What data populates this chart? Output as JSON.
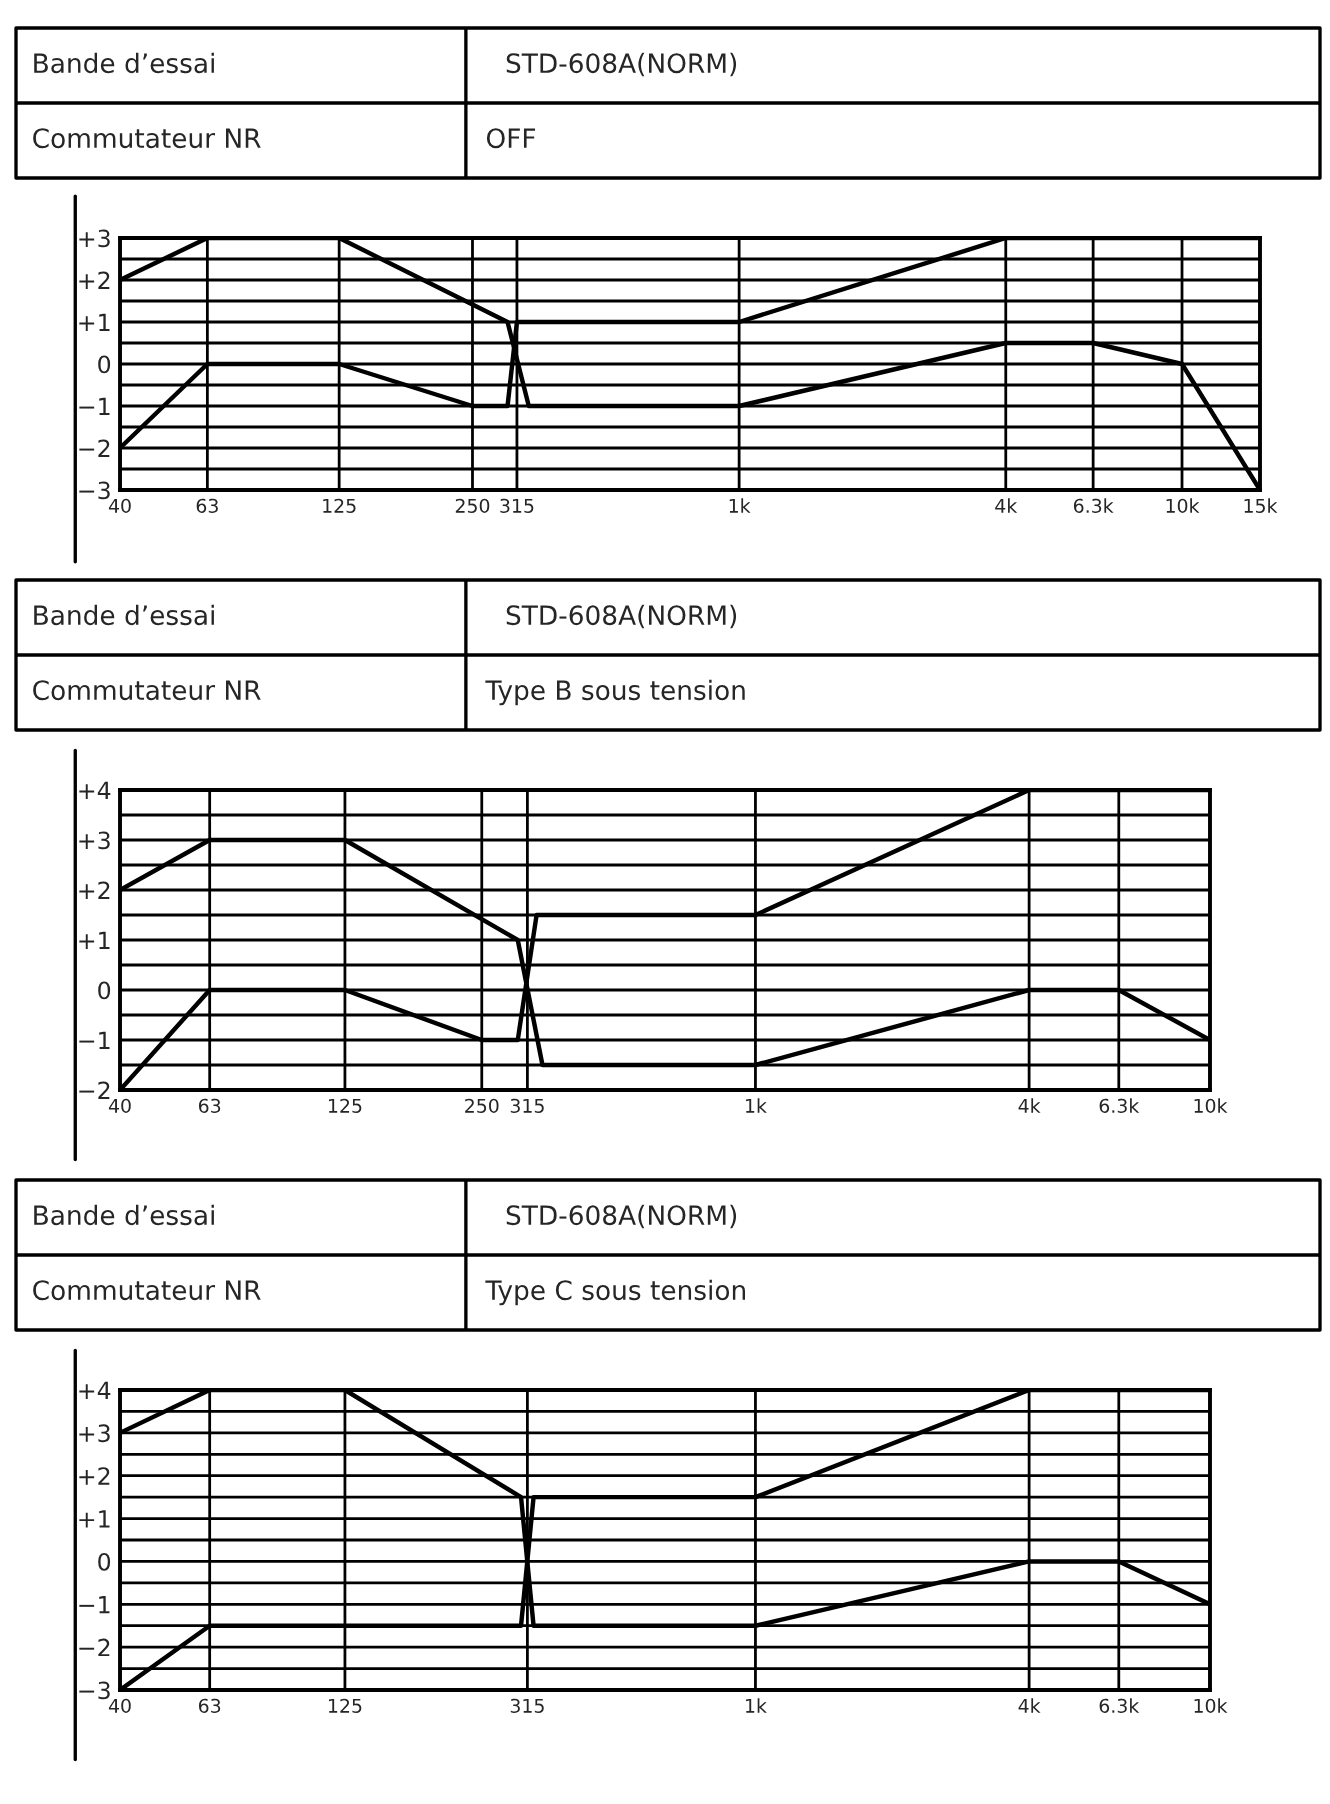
{
  "chart_data": [
    {
      "type": "line",
      "annotations": [
        "Bande d’essai",
        "STD-608A(NORM)",
        "Commutateur NR",
        "OFF"
      ],
      "log": "x",
      "grid": true,
      "marker": "none",
      "line_style": "solid",
      "xlim": [
        40,
        15000
      ],
      "xticks": [
        40,
        63,
        125,
        250,
        315,
        {
          "value": 1000,
          "label": "1k"
        },
        {
          "value": 4000,
          "label": "4k"
        },
        {
          "value": 6300,
          "label": "6.3k"
        },
        {
          "value": 10000,
          "label": "10k"
        },
        {
          "value": 15000,
          "label": "15k"
        }
      ],
      "ylim": [
        -3,
        3
      ],
      "yticks": [
        {
          "value": -3,
          "label": "−3"
        },
        {
          "value": -2.5,
          "label": null
        },
        {
          "value": -2,
          "label": "−2"
        },
        {
          "value": -1.5,
          "label": null
        },
        {
          "value": -1,
          "label": "−1"
        },
        {
          "value": -0.5,
          "label": null
        },
        0,
        {
          "value": 0.5,
          "label": null
        },
        {
          "value": 1,
          "label": "+1"
        },
        {
          "value": 1.5,
          "label": null
        },
        {
          "value": 2,
          "label": "+2"
        },
        {
          "value": 2.5,
          "label": null
        },
        {
          "value": 3,
          "label": "+3"
        }
      ],
      "series": [
        {
          "color": "#000000",
          "x": [
            40,
            63,
            125,
            300,
            335,
            1000,
            4000,
            6300,
            10000,
            15000
          ],
          "values": [
            2,
            3,
            3,
            1,
            -1,
            -1,
            0.5,
            0.5,
            0,
            -3
          ]
        },
        {
          "color": "#000000",
          "x": [
            40,
            63,
            125,
            250,
            300,
            315,
            1000,
            4000,
            15000
          ],
          "values": [
            -2,
            0,
            0,
            -1,
            -1,
            1,
            1,
            3,
            3
          ]
        }
      ]
    },
    {
      "type": "line",
      "annotations": [
        "Bande d’essai",
        "STD-608A(NORM)",
        "Commutateur NR",
        "Type B sous tension"
      ],
      "log": "x",
      "grid": true,
      "marker": "none",
      "line_style": "solid",
      "xlim": [
        40,
        10000
      ],
      "xticks": [
        40,
        63,
        125,
        250,
        315,
        {
          "value": 1000,
          "label": "1k"
        },
        {
          "value": 4000,
          "label": "4k"
        },
        {
          "value": 6300,
          "label": "6.3k"
        },
        {
          "value": 10000,
          "label": "10k"
        }
      ],
      "ylim": [
        -2,
        4
      ],
      "yticks": [
        {
          "value": -2,
          "label": "−2"
        },
        {
          "value": -1.5,
          "label": null
        },
        {
          "value": -1,
          "label": "−1"
        },
        {
          "value": -0.5,
          "label": null
        },
        0,
        {
          "value": 0.5,
          "label": null
        },
        {
          "value": 1,
          "label": "+1"
        },
        {
          "value": 1.5,
          "label": null
        },
        {
          "value": 2,
          "label": "+2"
        },
        {
          "value": 2.5,
          "label": null
        },
        {
          "value": 3,
          "label": "+3"
        },
        {
          "value": 3.5,
          "label": null
        },
        {
          "value": 4,
          "label": "+4"
        }
      ],
      "series": [
        {
          "color": "#000000",
          "x": [
            40,
            63,
            125,
            300,
            340,
            1000,
            4000,
            6300,
            10000
          ],
          "values": [
            2,
            3,
            3,
            1,
            -1.5,
            -1.5,
            0,
            0,
            -1
          ]
        },
        {
          "color": "#000000",
          "x": [
            40,
            63,
            125,
            250,
            300,
            330,
            1000,
            4000,
            10000
          ],
          "values": [
            -2,
            0,
            0,
            -1,
            -1,
            1.5,
            1.5,
            4,
            4
          ]
        }
      ]
    },
    {
      "type": "line",
      "annotations": [
        "Bande d’essai",
        "STD-608A(NORM)",
        "Commutateur NR",
        "Type C sous tension"
      ],
      "log": "x",
      "grid": true,
      "marker": "none",
      "line_style": "solid",
      "xlim": [
        40,
        10000
      ],
      "xticks": [
        40,
        63,
        125,
        315,
        {
          "value": 1000,
          "label": "1k"
        },
        {
          "value": 4000,
          "label": "4k"
        },
        {
          "value": 6300,
          "label": "6.3k"
        },
        {
          "value": 10000,
          "label": "10k"
        }
      ],
      "ylim": [
        -3,
        4
      ],
      "yticks": [
        {
          "value": -3,
          "label": "−3"
        },
        {
          "value": -2.5,
          "label": null
        },
        {
          "value": -2,
          "label": "−2"
        },
        {
          "value": -1.5,
          "label": null
        },
        {
          "value": -1,
          "label": "−1"
        },
        {
          "value": -0.5,
          "label": null
        },
        0,
        {
          "value": 0.5,
          "label": null
        },
        {
          "value": 1,
          "label": "+1"
        },
        {
          "value": 1.5,
          "label": null
        },
        {
          "value": 2,
          "label": "+2"
        },
        {
          "value": 2.5,
          "label": null
        },
        {
          "value": 3,
          "label": "+3"
        },
        {
          "value": 3.5,
          "label": null
        },
        {
          "value": 4,
          "label": "+4"
        }
      ],
      "series": [
        {
          "color": "#000000",
          "x": [
            40,
            63,
            125,
            305,
            325,
            1000,
            4000,
            6300,
            10000
          ],
          "values": [
            3,
            4,
            4,
            1.5,
            -1.5,
            -1.5,
            0,
            0,
            -1
          ]
        },
        {
          "color": "#000000",
          "x": [
            40,
            63,
            305,
            325,
            1000,
            4000,
            10000
          ],
          "values": [
            -3,
            -1.5,
            -1.5,
            1.5,
            1.5,
            4,
            4
          ]
        }
      ]
    }
  ]
}
